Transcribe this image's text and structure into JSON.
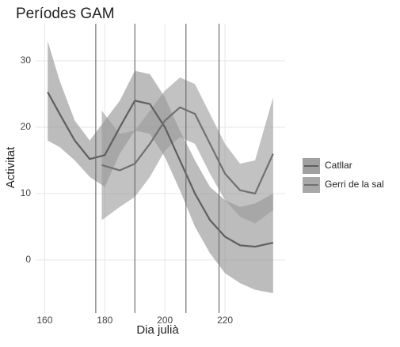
{
  "chart_data": {
    "type": "ribbon-line",
    "title": "Períodes GAM",
    "x_label": "Dia julià",
    "y_label": "Activitat",
    "xlim": [
      157,
      240
    ],
    "xticks": [
      160,
      180,
      200,
      220
    ],
    "ylim": [
      -8,
      35.6
    ],
    "yticks": [
      0,
      10,
      20,
      30
    ],
    "grid": true,
    "legend": "right",
    "vlines": [
      177,
      190,
      207,
      218
    ],
    "vline_color": "#6e6e6e",
    "series": [
      {
        "name": "Catllar",
        "color": "#5f5f5f",
        "fill": "#8f8f8f",
        "x": [
          161,
          165,
          170,
          175,
          180,
          185,
          190,
          195,
          200,
          205,
          210,
          215,
          220,
          225,
          230,
          236
        ],
        "values": [
          25.3,
          22,
          18,
          15.2,
          15.8,
          20,
          24,
          23.5,
          20,
          15,
          10,
          6,
          3.5,
          2.2,
          2,
          2.6
        ],
        "lower": [
          18,
          17,
          15,
          12.5,
          11,
          16,
          19.5,
          19,
          15.5,
          10.5,
          5,
          1,
          -2,
          -3.5,
          -4.5,
          -5
        ],
        "upper": [
          33,
          27,
          21,
          18,
          21,
          24,
          28.5,
          28,
          24.5,
          19.5,
          15,
          11,
          9,
          8,
          8.5,
          10
        ]
      },
      {
        "name": "Gerri de la sal",
        "color": "#707070",
        "fill": "#9a9a9a",
        "x": [
          179,
          185,
          190,
          195,
          200,
          205,
          210,
          215,
          220,
          225,
          230,
          236
        ],
        "values": [
          14.3,
          13.5,
          14.5,
          17.5,
          21,
          23,
          22,
          17.5,
          13,
          10.5,
          10,
          16
        ],
        "lower": [
          6,
          8,
          9.5,
          12.5,
          16.5,
          18.5,
          17.5,
          13,
          9,
          6.5,
          5.5,
          7.5
        ],
        "upper": [
          22.5,
          19,
          19.5,
          22.5,
          25.5,
          27.5,
          26.5,
          22,
          17.5,
          14.5,
          15,
          24.5
        ]
      }
    ]
  }
}
